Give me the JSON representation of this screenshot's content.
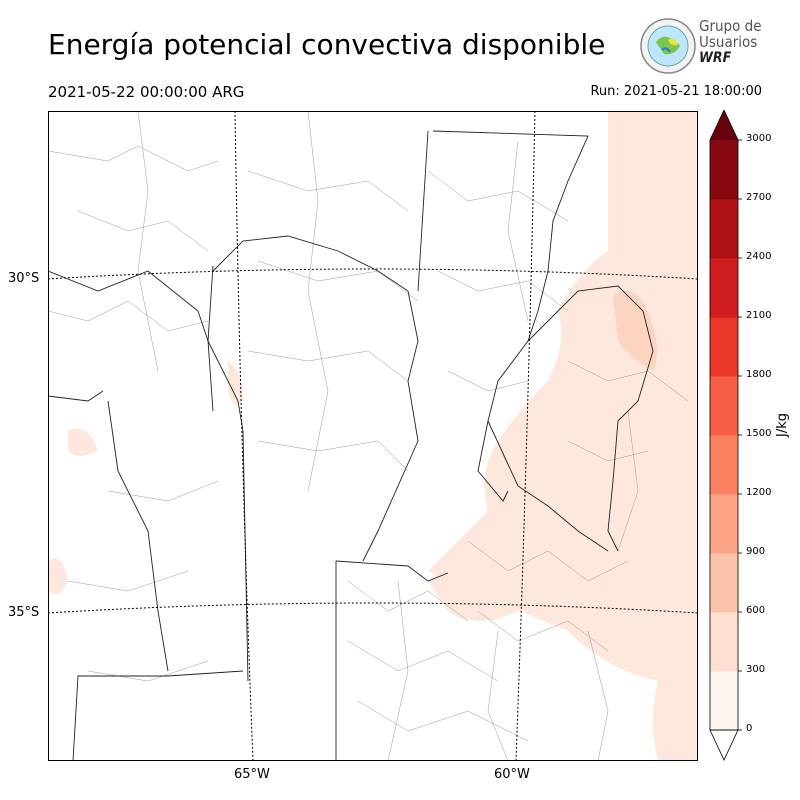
{
  "header": {
    "title": "Energía potencial convectiva disponible",
    "valid_time": "2021-05-22 00:00:00 ARG",
    "run_time": "Run: 2021-05-21 18:00:00"
  },
  "logo": {
    "line1": "Grupo de",
    "line2": "Usuarios",
    "line3": "WRF"
  },
  "map": {
    "lat_labels": [
      "30°S",
      "35°S"
    ],
    "lon_labels": [
      "65°W",
      "60°W"
    ]
  },
  "colorbar": {
    "unit": "J/kg",
    "ticks": [
      "0",
      "300",
      "600",
      "900",
      "1200",
      "1500",
      "1800",
      "2100",
      "2400",
      "2700",
      "3000"
    ],
    "colors": [
      "#fff5f0",
      "#fee0d2",
      "#fcc3ab",
      "#fca486",
      "#fc8161",
      "#f85e44",
      "#eb3728",
      "#d01d1f",
      "#b11218",
      "#860811",
      "#67000d"
    ]
  }
}
